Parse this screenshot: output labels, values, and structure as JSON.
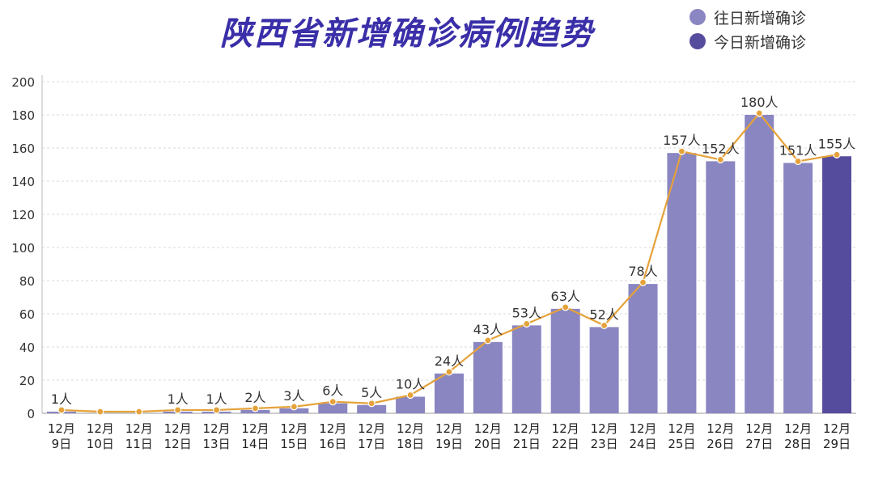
{
  "chart_data": {
    "type": "bar",
    "title": "陕西省新增确诊病例趋势",
    "xlabel": "",
    "ylabel": "",
    "ylim": [
      0,
      200
    ],
    "yticks": [
      0,
      20,
      40,
      60,
      80,
      100,
      120,
      140,
      160,
      180,
      200
    ],
    "grid": true,
    "legend_position": "top-right",
    "categories": [
      [
        "12月",
        "9日"
      ],
      [
        "12月",
        "10日"
      ],
      [
        "12月",
        "11日"
      ],
      [
        "12月",
        "12日"
      ],
      [
        "12月",
        "13日"
      ],
      [
        "12月",
        "14日"
      ],
      [
        "12月",
        "15日"
      ],
      [
        "12月",
        "16日"
      ],
      [
        "12月",
        "17日"
      ],
      [
        "12月",
        "18日"
      ],
      [
        "12月",
        "19日"
      ],
      [
        "12月",
        "20日"
      ],
      [
        "12月",
        "21日"
      ],
      [
        "12月",
        "22日"
      ],
      [
        "12月",
        "23日"
      ],
      [
        "12月",
        "24日"
      ],
      [
        "12月",
        "25日"
      ],
      [
        "12月",
        "26日"
      ],
      [
        "12月",
        "27日"
      ],
      [
        "12月",
        "28日"
      ],
      [
        "12月",
        "29日"
      ]
    ],
    "values": [
      1,
      0,
      0,
      1,
      1,
      2,
      3,
      6,
      5,
      10,
      24,
      43,
      53,
      63,
      52,
      78,
      157,
      152,
      180,
      151,
      155
    ],
    "data_labels": [
      "1人",
      "",
      "",
      "1人",
      "1人",
      "2人",
      "3人",
      "6人",
      "5人",
      "10人",
      "24人",
      "43人",
      "53人",
      "63人",
      "52人",
      "78人",
      "157人",
      "152人",
      "180人",
      "151人",
      "155人"
    ],
    "series": [
      {
        "name": "往日新增确诊",
        "color": "#8a86c2"
      },
      {
        "name": "今日新增确诊",
        "color": "#564c9d"
      }
    ],
    "highlight_index": 20,
    "line_color": "#e5a23a"
  }
}
